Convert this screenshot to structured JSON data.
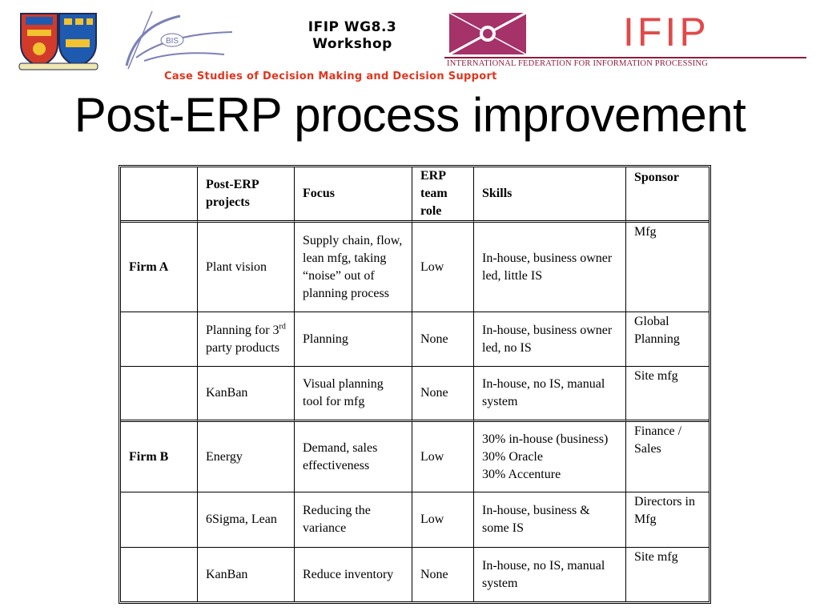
{
  "header": {
    "workshop_line1": "IFIP WG8.3",
    "workshop_line2": "Workshop",
    "ifip_logo_text": "IFIP",
    "ifip_full_name": "INTERNATIONAL FEDERATION FOR INFORMATION PROCESSING",
    "bis_logo_text": "BIS",
    "subtitle": "Case Studies of Decision Making and Decision Support"
  },
  "slide": {
    "title": "Post-ERP process improvement"
  },
  "table": {
    "headers": {
      "firm": "",
      "projects": "Post-ERP projects",
      "focus": "Focus",
      "erp_role": "ERP team role",
      "skills": "Skills",
      "sponsor": "Sponsor"
    },
    "rows": [
      {
        "firm": "Firm A",
        "project": "Plant vision",
        "focus": "Supply chain, flow, lean mfg, taking “noise” out of planning process",
        "erp_role": "Low",
        "skills": "In-house, business owner led, little IS",
        "sponsor": "Mfg"
      },
      {
        "firm": "",
        "project_pre": "Planning for 3",
        "project_sup": "rd",
        "project_post": " party products",
        "focus": "Planning",
        "erp_role": "None",
        "skills": "In-house, business owner led, no IS",
        "sponsor": "Global Planning"
      },
      {
        "firm": "",
        "project": "KanBan",
        "focus": "Visual planning tool for mfg",
        "erp_role": "None",
        "skills": "In-house, no IS, manual system",
        "sponsor": "Site mfg"
      },
      {
        "firm": "Firm B",
        "project": "Energy",
        "focus": "Demand, sales effectiveness",
        "erp_role": "Low",
        "skills": "30% in-house (business)\n30% Oracle\n30% Accenture",
        "sponsor": "Finance / Sales"
      },
      {
        "firm": "",
        "project": "6Sigma, Lean",
        "focus": "Reducing the variance",
        "erp_role": "Low",
        "skills": "In-house, business & some IS",
        "sponsor": "Directors in Mfg"
      },
      {
        "firm": "",
        "project": "KanBan",
        "focus": "Reduce inventory",
        "erp_role": "None",
        "skills": "In-house, no IS, manual system",
        "sponsor": "Site mfg"
      }
    ]
  },
  "colors": {
    "ifip_red": "#e04a4a",
    "ifip_maroon": "#8c1d3c",
    "subtitle_red": "#e0361f",
    "bis_blue": "#6a6fb0"
  },
  "icons": [
    "university-crest-icon",
    "bis-logo-icon",
    "ifip-emblem-icon"
  ]
}
